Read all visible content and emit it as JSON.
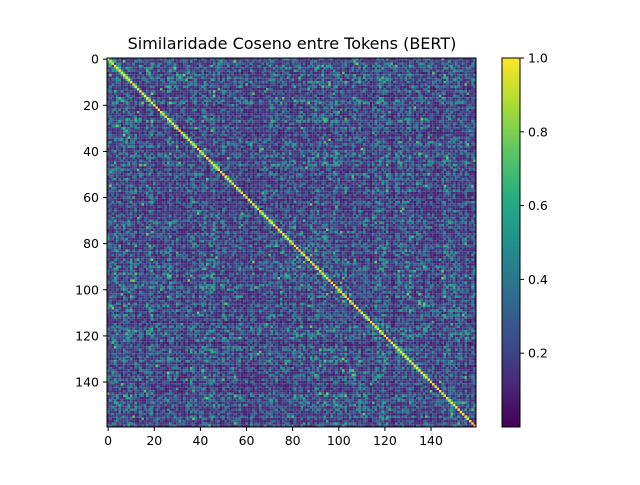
{
  "chart_data": {
    "type": "heatmap",
    "title": "Similaridade Coseno entre Tokens (BERT)",
    "n_tokens": 160,
    "xlim": [
      0,
      159
    ],
    "ylim": [
      0,
      159
    ],
    "x_ticks": [
      0,
      20,
      40,
      60,
      80,
      100,
      120,
      140
    ],
    "y_ticks": [
      0,
      20,
      40,
      60,
      80,
      100,
      120,
      140
    ],
    "colormap": "viridis",
    "value_range": [
      0.0,
      1.0
    ],
    "diagonal_value": 1.0,
    "off_diagonal_typical": [
      0.1,
      0.5
    ],
    "colorbar_ticks": [
      "0.2",
      "0.4",
      "0.6",
      "0.8",
      "1.0"
    ]
  }
}
